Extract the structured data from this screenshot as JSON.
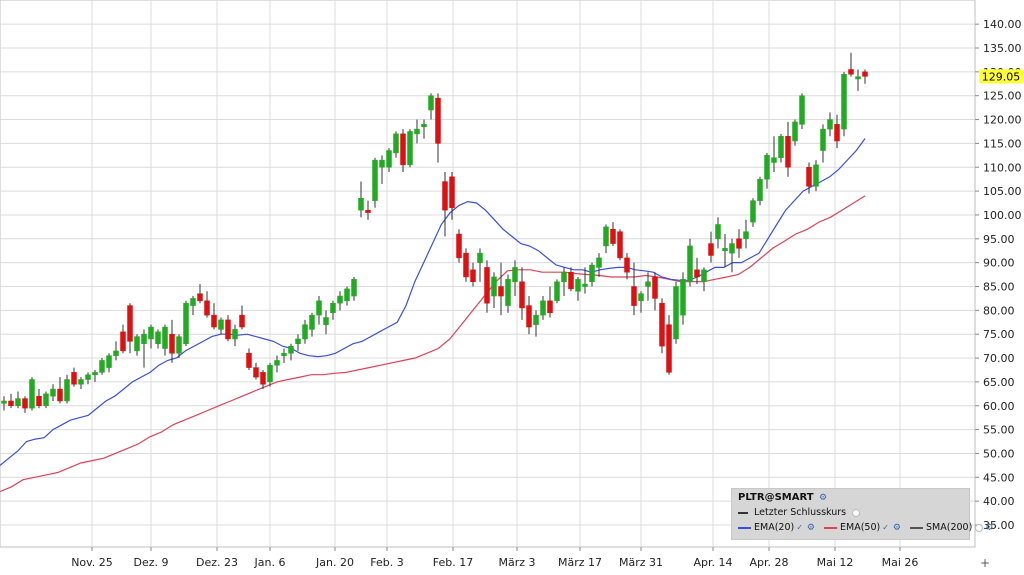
{
  "legend": {
    "title": "PLTR@SMART",
    "last_close_label": "Letzter Schlusskurs",
    "indicators": [
      {
        "label": "EMA(20)",
        "color": "#3a4ee0"
      },
      {
        "label": "EMA(50)",
        "color": "#e0405a"
      },
      {
        "label": "SMA(200)",
        "color": "#555555"
      }
    ]
  },
  "price_tag": "129.05",
  "colors": {
    "up": "#22aa22",
    "down": "#dd1111",
    "ema20": "#3a4ee0",
    "ema50": "#e0405a",
    "tag": "#ffff33",
    "grid": "#dcdcdc"
  },
  "chart_data": {
    "type": "candlestick",
    "y_ticks": [
      "140.00",
      "135.00",
      "130.00",
      "125.00",
      "120.00",
      "115.00",
      "110.00",
      "105.00",
      "100.00",
      "95.00",
      "90.00",
      "85.00",
      "80.00",
      "75.00",
      "70.00",
      "65.00",
      "60.00",
      "55.00",
      "50.00",
      "45.00",
      "40.00",
      "35.00"
    ],
    "x_ticks": [
      "Nov. 25",
      "Dez. 9",
      "Dez. 23",
      "Jan. 6",
      "Jan. 20",
      "Feb. 3",
      "Feb. 17",
      "März 3",
      "März 17",
      "März 31",
      "Apr. 14",
      "Apr. 28",
      "Mai 12",
      "Mai 26"
    ],
    "ylim": [
      30,
      142
    ],
    "last_close": 129.05,
    "candles": [
      [
        60.5,
        62.0,
        59.0,
        61.0
      ],
      [
        61.0,
        62.5,
        59.5,
        60.0
      ],
      [
        60.0,
        63.0,
        59.5,
        61.5
      ],
      [
        61.5,
        62.0,
        58.5,
        59.5
      ],
      [
        59.5,
        66.0,
        59.0,
        65.5
      ],
      [
        62.0,
        63.5,
        59.5,
        60.0
      ],
      [
        60.0,
        63.0,
        59.5,
        62.5
      ],
      [
        62.0,
        64.5,
        61.0,
        63.5
      ],
      [
        63.5,
        66.0,
        60.5,
        61.0
      ],
      [
        61.0,
        66.5,
        60.5,
        65.5
      ],
      [
        67.0,
        68.0,
        64.0,
        64.5
      ],
      [
        64.5,
        66.0,
        63.5,
        65.5
      ],
      [
        65.5,
        67.0,
        64.5,
        66.5
      ],
      [
        66.5,
        67.5,
        65.0,
        67.0
      ],
      [
        67.0,
        70.0,
        66.5,
        69.5
      ],
      [
        68.0,
        71.0,
        67.0,
        70.5
      ],
      [
        70.5,
        73.5,
        69.5,
        71.5
      ],
      [
        75.5,
        77.0,
        71.0,
        71.5
      ],
      [
        81.0,
        81.5,
        71.0,
        73.5
      ],
      [
        71.5,
        75.0,
        70.5,
        74.5
      ],
      [
        73.0,
        76.0,
        68.0,
        75.0
      ],
      [
        74.0,
        77.0,
        72.0,
        76.5
      ],
      [
        73.0,
        76.0,
        72.0,
        75.5
      ],
      [
        72.0,
        77.0,
        70.5,
        76.5
      ],
      [
        75.0,
        78.0,
        69.0,
        71.0
      ],
      [
        71.0,
        75.0,
        70.0,
        74.5
      ],
      [
        73.0,
        82.0,
        72.5,
        81.5
      ],
      [
        81.0,
        83.0,
        79.0,
        82.5
      ],
      [
        83.5,
        85.5,
        81.5,
        82.0
      ],
      [
        82.0,
        84.0,
        78.5,
        79.0
      ],
      [
        79.0,
        81.5,
        76.0,
        76.5
      ],
      [
        76.0,
        78.5,
        75.0,
        78.0
      ],
      [
        78.0,
        79.0,
        73.5,
        74.0
      ],
      [
        74.0,
        77.0,
        72.5,
        76.0
      ],
      [
        79.0,
        81.0,
        76.0,
        76.5
      ],
      [
        71.0,
        72.0,
        67.5,
        68.0
      ],
      [
        68.0,
        69.0,
        65.5,
        66.0
      ],
      [
        67.0,
        67.5,
        63.5,
        64.5
      ],
      [
        65.0,
        69.0,
        64.0,
        68.5
      ],
      [
        68.5,
        70.5,
        67.0,
        69.5
      ],
      [
        70.5,
        72.0,
        69.0,
        71.0
      ],
      [
        71.0,
        73.0,
        69.5,
        72.5
      ],
      [
        73.0,
        75.0,
        71.5,
        74.0
      ],
      [
        74.0,
        78.0,
        73.0,
        77.0
      ],
      [
        76.0,
        79.5,
        74.5,
        79.0
      ],
      [
        79.0,
        83.0,
        77.0,
        82.0
      ],
      [
        77.0,
        80.0,
        75.0,
        78.5
      ],
      [
        79.5,
        82.0,
        78.0,
        81.5
      ],
      [
        81.5,
        84.0,
        80.0,
        83.0
      ],
      [
        82.0,
        85.0,
        81.0,
        84.5
      ],
      [
        83.0,
        87.0,
        82.0,
        86.5
      ],
      [
        101.0,
        107.0,
        99.5,
        103.5
      ],
      [
        101.0,
        103.0,
        99.0,
        100.5
      ],
      [
        103.0,
        112.0,
        101.5,
        111.5
      ],
      [
        110.0,
        112.5,
        106.5,
        111.5
      ],
      [
        110.0,
        114.0,
        109.0,
        113.5
      ],
      [
        113.0,
        117.5,
        112.0,
        117.0
      ],
      [
        117.0,
        118.0,
        109.0,
        110.5
      ],
      [
        110.5,
        118.0,
        110.0,
        117.5
      ],
      [
        117.0,
        120.0,
        115.0,
        118.0
      ],
      [
        118.5,
        120.0,
        116.0,
        119.0
      ],
      [
        122.0,
        125.5,
        120.0,
        125.0
      ],
      [
        124.5,
        125.5,
        111.0,
        115.0
      ],
      [
        107.0,
        109.0,
        95.5,
        101.0
      ],
      [
        108.0,
        109.0,
        99.0,
        101.5
      ],
      [
        96.0,
        97.0,
        90.0,
        91.0
      ],
      [
        92.0,
        93.0,
        86.0,
        87.0
      ],
      [
        88.5,
        90.0,
        85.0,
        86.0
      ],
      [
        90.0,
        93.0,
        86.0,
        92.0
      ],
      [
        89.0,
        90.5,
        79.5,
        81.5
      ],
      [
        83.0,
        88.0,
        80.5,
        87.0
      ],
      [
        85.0,
        90.0,
        79.0,
        83.0
      ],
      [
        81.0,
        87.5,
        79.5,
        86.5
      ],
      [
        86.0,
        90.5,
        83.0,
        89.0
      ],
      [
        86.0,
        89.0,
        78.0,
        80.5
      ],
      [
        81.0,
        83.0,
        75.0,
        76.5
      ],
      [
        77.0,
        80.0,
        74.5,
        79.0
      ],
      [
        79.0,
        83.0,
        78.0,
        82.0
      ],
      [
        82.0,
        85.0,
        78.5,
        79.5
      ],
      [
        82.0,
        86.5,
        81.5,
        86.0
      ],
      [
        86.0,
        89.0,
        83.0,
        88.0
      ],
      [
        88.0,
        89.0,
        84.0,
        84.5
      ],
      [
        84.0,
        87.0,
        82.0,
        86.5
      ],
      [
        85.0,
        89.0,
        83.5,
        85.5
      ],
      [
        86.0,
        90.0,
        85.0,
        89.5
      ],
      [
        89.0,
        92.0,
        87.0,
        91.0
      ],
      [
        93.5,
        98.0,
        92.0,
        97.5
      ],
      [
        97.0,
        98.5,
        93.5,
        94.0
      ],
      [
        96.5,
        97.0,
        90.5,
        91.0
      ],
      [
        91.0,
        92.0,
        86.5,
        88.0
      ],
      [
        85.0,
        90.0,
        79.0,
        81.0
      ],
      [
        82.0,
        84.0,
        79.5,
        83.5
      ],
      [
        85.0,
        88.0,
        82.0,
        86.0
      ],
      [
        87.0,
        88.0,
        80.0,
        82.5
      ],
      [
        81.5,
        82.5,
        71.0,
        72.5
      ],
      [
        77.0,
        79.0,
        66.5,
        67.0
      ],
      [
        74.0,
        86.0,
        73.0,
        85.0
      ],
      [
        79.0,
        88.0,
        77.0,
        86.5
      ],
      [
        86.0,
        95.0,
        85.0,
        93.5
      ],
      [
        88.5,
        91.0,
        85.5,
        87.0
      ],
      [
        86.0,
        89.0,
        84.0,
        88.5
      ],
      [
        94.0,
        96.5,
        90.0,
        91.5
      ],
      [
        95.0,
        99.5,
        93.0,
        98.0
      ],
      [
        92.5,
        96.0,
        89.0,
        93.0
      ],
      [
        92.0,
        95.0,
        88.0,
        94.0
      ],
      [
        95.0,
        97.0,
        91.0,
        93.0
      ],
      [
        95.0,
        99.0,
        93.0,
        96.5
      ],
      [
        98.5,
        103.5,
        97.5,
        103.0
      ],
      [
        103.0,
        108.0,
        102.0,
        107.5
      ],
      [
        107.5,
        113.0,
        105.5,
        112.5
      ],
      [
        111.0,
        116.5,
        109.0,
        112.0
      ],
      [
        112.0,
        117.0,
        111.0,
        116.5
      ],
      [
        116.5,
        119.5,
        108.0,
        110.0
      ],
      [
        115.5,
        120.0,
        114.5,
        119.5
      ],
      [
        119.0,
        125.5,
        118.0,
        125.0
      ],
      [
        110.0,
        111.0,
        104.5,
        106.0
      ],
      [
        106.0,
        111.5,
        105.0,
        110.5
      ],
      [
        113.5,
        119.0,
        111.0,
        118.0
      ],
      [
        118.0,
        121.5,
        116.5,
        120.0
      ],
      [
        119.0,
        121.0,
        114.0,
        115.5
      ],
      [
        118.0,
        130.0,
        116.5,
        129.5
      ],
      [
        130.5,
        134.0,
        129.0,
        129.5
      ],
      [
        128.5,
        130.5,
        126.0,
        129.0
      ],
      [
        130.0,
        130.5,
        127.5,
        129.05
      ]
    ],
    "ema20": [
      47.5,
      49,
      50.5,
      52.5,
      53,
      53.3,
      55,
      56,
      57,
      57.5,
      58,
      59.5,
      61,
      62,
      63.5,
      65,
      66,
      67,
      68.5,
      69.5,
      70,
      71.5,
      72.5,
      73.5,
      74.5,
      75,
      75,
      74.8,
      75,
      74.5,
      74,
      73.5,
      72.5,
      72,
      71,
      70.5,
      70.3,
      70.5,
      71,
      72,
      73,
      73.5,
      74.5,
      75.5,
      76.5,
      77.5,
      81,
      86,
      90,
      94,
      98,
      100.5,
      102,
      102.8,
      102.5,
      101,
      99,
      97,
      95.5,
      94,
      93.5,
      92.5,
      91,
      89.5,
      89,
      88.5,
      88.5,
      88,
      88.5,
      88.8,
      89,
      89,
      88.5,
      88.3,
      88,
      87,
      86.5,
      86.3,
      86.3,
      87,
      88,
      89,
      89,
      90,
      90,
      91,
      92,
      95,
      98,
      101,
      103,
      105,
      106,
      107,
      108,
      109.5,
      111.5,
      113.5,
      116
    ],
    "ema50": [
      42,
      43,
      44.5,
      45,
      45.5,
      46,
      47,
      48,
      48.5,
      49,
      50,
      51,
      52,
      53.5,
      54.5,
      56,
      57,
      58,
      59,
      60,
      61,
      62,
      63,
      64,
      65,
      65.5,
      66,
      66.5,
      66.5,
      66.8,
      67,
      67.5,
      68,
      68.5,
      69,
      69.5,
      70,
      71,
      72,
      74,
      77,
      80,
      83,
      86,
      88.3,
      88.5,
      88.5,
      88,
      88,
      88,
      87.7,
      87.5,
      87.3,
      87,
      87,
      87,
      87.3,
      87,
      86.5,
      86,
      86,
      86,
      86.5,
      87,
      87.5,
      89,
      91,
      93,
      94.5,
      96,
      97,
      98.5,
      99.5,
      101,
      102.5,
      104
    ]
  }
}
